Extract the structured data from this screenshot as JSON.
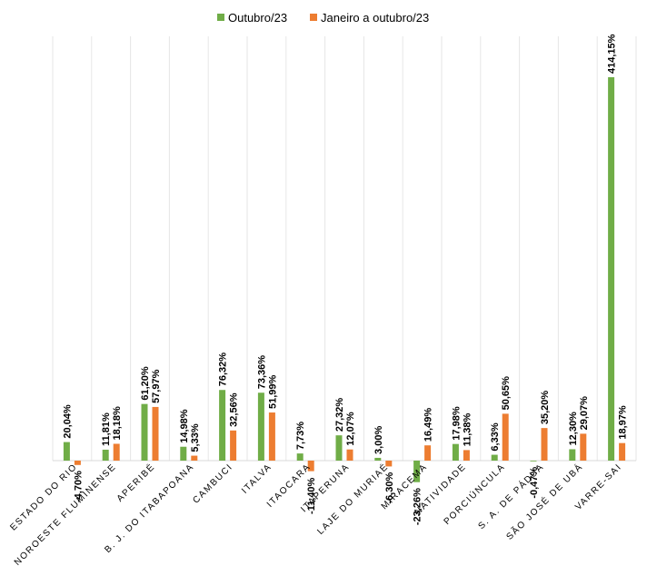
{
  "chart_data": {
    "type": "bar",
    "categories": [
      "ESTADO DO RIO",
      "NOROESTE FLUMINENSE",
      "APERIBÉ",
      "B. J. DO ITABAPOANA",
      "CAMBUCI",
      "ITALVA",
      "ITAOCARA",
      "ITAPERUNA",
      "LAJE DO MURIAÉ",
      "MIRACEMA",
      "NATIVIDADE",
      "PORCIÚNCULA",
      "S. A. DE PÁDUA",
      "SÃO JOSÉ DE UBÁ",
      "VARRE-SAI"
    ],
    "series": [
      {
        "name": "Outubro/23",
        "color": "#70ad47",
        "values": [
          20.04,
          11.81,
          61.2,
          14.98,
          76.32,
          73.36,
          7.73,
          27.32,
          3.0,
          -23.26,
          17.98,
          6.33,
          -0.47,
          12.3,
          414.15
        ],
        "labels": [
          "20,04%",
          "11,81%",
          "61,20%",
          "14,98%",
          "76,32%",
          "73,36%",
          "7,73%",
          "27,32%",
          "3,00%",
          "-23,26%",
          "17,98%",
          "6,33%",
          "-0,47%",
          "12,30%",
          "414,15%"
        ]
      },
      {
        "name": "Janeiro a outubro/23",
        "color": "#ed7d31",
        "values": [
          -4.7,
          18.18,
          57.97,
          5.33,
          32.56,
          51.99,
          -11.4,
          12.07,
          -6.3,
          16.49,
          11.38,
          50.65,
          35.2,
          29.07,
          18.97
        ],
        "labels": [
          "-4,70%",
          "18,18%",
          "57,97%",
          "5,33%",
          "32,56%",
          "51,99%",
          "-11,40%",
          "12,07%",
          "-6,30%",
          "16,49%",
          "11,38%",
          "50,65%",
          "35,20%",
          "29,07%",
          "18,97%"
        ]
      }
    ],
    "ylim": [
      -23.26,
      414.15
    ],
    "grid": "vertical",
    "legend": "top-center"
  }
}
